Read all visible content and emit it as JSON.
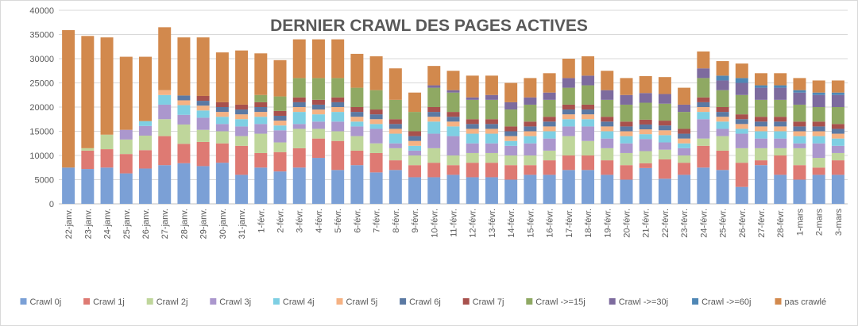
{
  "chart_data": {
    "type": "bar",
    "stacked": true,
    "title": "DERNIER CRAWL DES PAGES ACTIVES",
    "xlabel": "",
    "ylabel": "",
    "ylim": [
      0,
      40000
    ],
    "yticks": [
      0,
      5000,
      10000,
      15000,
      20000,
      25000,
      30000,
      35000,
      40000
    ],
    "grid": true,
    "legend_position": "bottom",
    "categories": [
      "22-janv.",
      "23-janv.",
      "24-janv.",
      "25-janv.",
      "26-janv.",
      "27-janv.",
      "28-janv.",
      "29-janv.",
      "30-janv.",
      "31-janv.",
      "1-févr.",
      "2-févr.",
      "3-févr.",
      "4-févr.",
      "5-févr.",
      "6-févr.",
      "7-févr.",
      "8-févr.",
      "9-févr.",
      "10-févr.",
      "11-févr.",
      "12-févr.",
      "13-févr.",
      "14-févr.",
      "15-févr.",
      "16-févr.",
      "17-févr.",
      "18-févr.",
      "19-févr.",
      "20-févr.",
      "21-févr.",
      "22-févr.",
      "23-févr.",
      "24-févr.",
      "25-févr.",
      "26-févr.",
      "27-févr.",
      "28-févr.",
      "1-mars",
      "2-mars",
      "3-mars"
    ],
    "series": [
      {
        "name": "Crawl 0j",
        "color": "#7ba0d6",
        "values": [
          7500,
          7200,
          7500,
          6300,
          7300,
          8000,
          8400,
          7800,
          8500,
          6000,
          7500,
          6700,
          7500,
          9500,
          7000,
          8000,
          6500,
          7000,
          5500,
          5500,
          6000,
          5500,
          5500,
          5000,
          6000,
          6000,
          7000,
          7000,
          6000,
          5000,
          7400,
          5200,
          6000,
          7500,
          7000,
          3500,
          8000,
          6000,
          5000,
          6000,
          6000
        ]
      },
      {
        "name": "Crawl 1j",
        "color": "#de7a73",
        "values": [
          0,
          3800,
          3800,
          4000,
          3800,
          6000,
          4000,
          5000,
          4000,
          6000,
          3000,
          4000,
          4000,
          4000,
          6000,
          3000,
          4000,
          2000,
          2500,
          3000,
          2000,
          3000,
          3000,
          3000,
          2000,
          3000,
          3000,
          3000,
          3000,
          3000,
          1000,
          4000,
          2500,
          4500,
          4000,
          5000,
          1000,
          4000,
          3000,
          1500,
          3000
        ]
      },
      {
        "name": "Crawl 2j",
        "color": "#bfd69b",
        "values": [
          0,
          500,
          3000,
          3000,
          3000,
          3500,
          4000,
          2500,
          2500,
          2000,
          4000,
          2000,
          4000,
          2000,
          2000,
          3000,
          2000,
          2500,
          2000,
          3000,
          2000,
          2000,
          2000,
          2000,
          2000,
          2000,
          4000,
          3000,
          2500,
          2500,
          2500,
          2000,
          1500,
          1500,
          3000,
          3000,
          2500,
          1500,
          3500,
          2000,
          1500
        ]
      },
      {
        "name": "Crawl 3j",
        "color": "#ab97cd",
        "values": [
          0,
          0,
          0,
          2000,
          2000,
          3000,
          2000,
          2500,
          1500,
          2000,
          2000,
          2500,
          1000,
          1500,
          2000,
          2000,
          3000,
          1000,
          1000,
          3000,
          4000,
          2000,
          2000,
          2000,
          2500,
          2500,
          2000,
          3000,
          2000,
          2000,
          2500,
          1500,
          1500,
          4000,
          1500,
          3000,
          2000,
          2000,
          1000,
          3000,
          1500
        ]
      },
      {
        "name": "Crawl 4j",
        "color": "#7ecfe3",
        "values": [
          0,
          0,
          0,
          0,
          1000,
          2000,
          2000,
          1500,
          1500,
          1500,
          1500,
          1000,
          2500,
          1500,
          2000,
          1000,
          1000,
          2000,
          1000,
          2500,
          2000,
          2000,
          2000,
          1000,
          1500,
          1500,
          1500,
          1500,
          1500,
          1500,
          1000,
          1500,
          1000,
          1500,
          1500,
          1000,
          1500,
          1500,
          1500,
          1500,
          1500
        ]
      },
      {
        "name": "Crawl 5j",
        "color": "#f5b283",
        "values": [
          0,
          0,
          0,
          0,
          0,
          1000,
          1000,
          1000,
          1000,
          1000,
          1000,
          1000,
          1000,
          1000,
          1000,
          1000,
          1000,
          1000,
          1000,
          1000,
          1000,
          1000,
          1000,
          1000,
          1000,
          1000,
          1000,
          1000,
          1000,
          1000,
          1000,
          1000,
          1000,
          1000,
          1000,
          1000,
          1000,
          1000,
          1000,
          1000,
          1000
        ]
      },
      {
        "name": "Crawl 6j",
        "color": "#5b79a3",
        "values": [
          0,
          0,
          0,
          0,
          0,
          0,
          1000,
          1000,
          1000,
          1000,
          1000,
          1000,
          1000,
          1000,
          1000,
          1000,
          1000,
          1000,
          1000,
          1000,
          1000,
          1000,
          1000,
          1000,
          1000,
          1000,
          1000,
          1000,
          1000,
          1000,
          1000,
          1000,
          1000,
          1000,
          1000,
          1000,
          1000,
          1000,
          1000,
          1000,
          1000
        ]
      },
      {
        "name": "Crawl 7j",
        "color": "#a8514d",
        "values": [
          0,
          0,
          0,
          0,
          0,
          0,
          0,
          1000,
          1000,
          1000,
          1000,
          1000,
          1000,
          1000,
          1000,
          1000,
          1000,
          1000,
          1000,
          1000,
          1000,
          1000,
          1000,
          1000,
          1000,
          1000,
          1000,
          1000,
          1000,
          1000,
          1000,
          1000,
          1000,
          1000,
          1000,
          1000,
          1000,
          1000,
          1000,
          1000,
          1000
        ]
      },
      {
        "name": "Crawl ->=15j",
        "color": "#8fa963",
        "values": [
          0,
          0,
          0,
          0,
          0,
          0,
          0,
          0,
          0,
          0,
          1500,
          3000,
          4000,
          4500,
          4000,
          4000,
          4000,
          4000,
          4000,
          4000,
          4000,
          4000,
          4000,
          3500,
          3500,
          3500,
          3500,
          4000,
          3500,
          3500,
          3500,
          3500,
          3500,
          4000,
          3500,
          4000,
          3500,
          3500,
          3500,
          3000,
          3500
        ]
      },
      {
        "name": "Crawl ->=30j",
        "color": "#7d6b9e",
        "values": [
          0,
          0,
          0,
          0,
          0,
          0,
          0,
          0,
          0,
          0,
          0,
          0,
          0,
          0,
          0,
          0,
          0,
          0,
          0,
          500,
          500,
          500,
          1000,
          1500,
          1500,
          1500,
          2000,
          2000,
          2000,
          2000,
          2000,
          2000,
          1500,
          2000,
          2000,
          2500,
          2500,
          2500,
          2500,
          2500,
          2500
        ]
      },
      {
        "name": "Crawl ->=60j",
        "color": "#4f87b5",
        "values": [
          0,
          0,
          0,
          0,
          0,
          0,
          0,
          0,
          0,
          0,
          0,
          0,
          0,
          0,
          0,
          0,
          0,
          0,
          0,
          0,
          0,
          0,
          0,
          0,
          0,
          0,
          0,
          0,
          0,
          0,
          0,
          0,
          0,
          0,
          1000,
          1000,
          500,
          500,
          500,
          500,
          500
        ]
      },
      {
        "name": "pas crawlé",
        "color": "#d2894d",
        "values": [
          28400,
          23200,
          20100,
          15100,
          13300,
          13000,
          12000,
          12100,
          10300,
          11200,
          8600,
          7500,
          8000,
          8000,
          8000,
          7000,
          7000,
          6500,
          4000,
          4000,
          4000,
          4500,
          4000,
          4000,
          4000,
          4000,
          4000,
          4000,
          4000,
          3500,
          3500,
          3500,
          3500,
          3500,
          3000,
          3000,
          2500,
          2500,
          2500,
          2500,
          2500
        ]
      }
    ]
  }
}
